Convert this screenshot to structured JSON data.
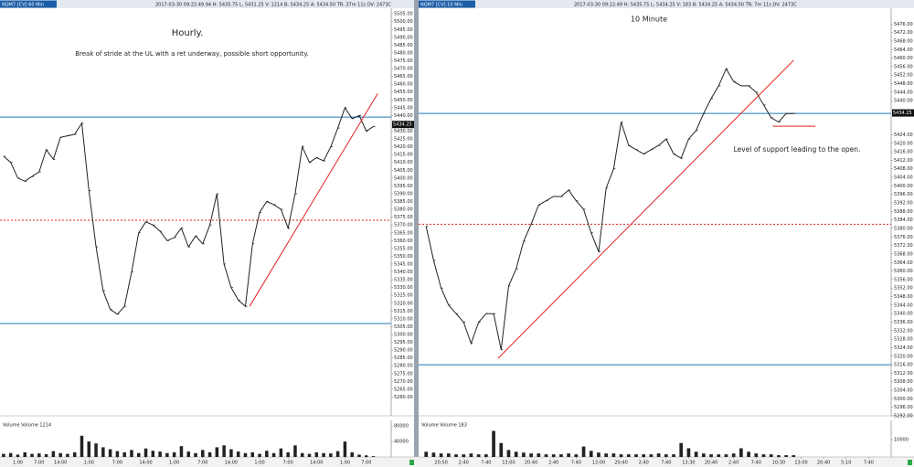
{
  "chart_data": [
    {
      "type": "line",
      "header": "NQM7 [CV] 60 Min",
      "status": "2017-03-30 09:22:49.94 H: 5435.75 L: 5431.25 V: 1214 B: 5434.25 A: 5434.50 TR: 37m 11s DV: 2473C",
      "annotations": [
        "Hourly.",
        "Break of stride at the UL with a ret underway, possible short opportunity."
      ],
      "values": [
        5414,
        5410,
        5400,
        5398,
        5401,
        5404,
        5418,
        5412,
        5426,
        5427,
        5428,
        5435,
        5392,
        5356,
        5328,
        5316,
        5313,
        5318,
        5340,
        5365,
        5372,
        5370,
        5366,
        5360,
        5362,
        5368,
        5356,
        5363,
        5358,
        5370,
        5390,
        5345,
        5330,
        5322,
        5318,
        5358,
        5378,
        5385,
        5383,
        5380,
        5368,
        5390,
        5420,
        5410,
        5413,
        5411,
        5420,
        5432,
        5445,
        5438,
        5440,
        5430,
        5433
      ],
      "color": "#222222",
      "xlim": [
        -0.5,
        54.5
      ],
      "ylim": [
        5248,
        5508
      ],
      "last": {
        "value": 5434.25,
        "label": "5434.25"
      },
      "hlines": [
        {
          "value": 5439,
          "color": "#1e7bb8",
          "style": "solid"
        },
        {
          "value": 5307,
          "color": "#1e7bb8",
          "style": "solid"
        },
        {
          "value": 5373,
          "color": "#e02020",
          "style": "dashed"
        }
      ],
      "trendlines": [
        {
          "x": [
            34.6,
            52.6
          ],
          "y": [
            5318,
            5454
          ],
          "color": "#e02020"
        }
      ],
      "yticks": [
        {
          "value": 5260,
          "label": "5260.00"
        },
        {
          "value": 5265,
          "label": "5265.00"
        },
        {
          "value": 5270,
          "label": "5270.00"
        },
        {
          "value": 5275,
          "label": "5275.00"
        },
        {
          "value": 5280,
          "label": "5280.00"
        },
        {
          "value": 5285,
          "label": "5285.00"
        },
        {
          "value": 5290,
          "label": "5290.00"
        },
        {
          "value": 5295,
          "label": "5295.00"
        },
        {
          "value": 5300,
          "label": "5300.00"
        },
        {
          "value": 5305,
          "label": "5305.00"
        },
        {
          "value": 5310,
          "label": "5310.00"
        },
        {
          "value": 5315,
          "label": "5315.00"
        },
        {
          "value": 5320,
          "label": "5320.00"
        },
        {
          "value": 5325,
          "label": "5325.00"
        },
        {
          "value": 5330,
          "label": "5330.00"
        },
        {
          "value": 5335,
          "label": "5335.00"
        },
        {
          "value": 5340,
          "label": "5340.00"
        },
        {
          "value": 5345,
          "label": "5345.00"
        },
        {
          "value": 5350,
          "label": "5350.00"
        },
        {
          "value": 5355,
          "label": "5355.00"
        },
        {
          "value": 5360,
          "label": "5360.00"
        },
        {
          "value": 5365,
          "label": "5365.00"
        },
        {
          "value": 5370,
          "label": "5370.00"
        },
        {
          "value": 5375,
          "label": "5375.00"
        },
        {
          "value": 5380,
          "label": "5380.00"
        },
        {
          "value": 5385,
          "label": "5385.00"
        },
        {
          "value": 5390,
          "label": "5390.00"
        },
        {
          "value": 5395,
          "label": "5395.00"
        },
        {
          "value": 5400,
          "label": "5400.00"
        },
        {
          "value": 5405,
          "label": "5405.00"
        },
        {
          "value": 5410,
          "label": "5410.00"
        },
        {
          "value": 5415,
          "label": "5415.00"
        },
        {
          "value": 5420,
          "label": "5420.00"
        },
        {
          "value": 5425,
          "label": "5425.00"
        },
        {
          "value": 5430,
          "label": "5430.00"
        },
        {
          "value": 5440,
          "label": "5440.00"
        },
        {
          "value": 5445,
          "label": "5445.00"
        },
        {
          "value": 5450,
          "label": "5450.00"
        },
        {
          "value": 5455,
          "label": "5455.00"
        },
        {
          "value": 5460,
          "label": "5460.00"
        },
        {
          "value": 5465,
          "label": "5465.00"
        },
        {
          "value": 5470,
          "label": "5470.00"
        },
        {
          "value": 5475,
          "label": "5475.00"
        },
        {
          "value": 5480,
          "label": "5480.00"
        },
        {
          "value": 5485,
          "label": "5485.00"
        },
        {
          "value": 5490,
          "label": "5490.00"
        },
        {
          "value": 5495,
          "label": "5495.00"
        },
        {
          "value": 5500,
          "label": "5500.00"
        },
        {
          "value": 5505,
          "label": "5505.00"
        }
      ]
    },
    {
      "type": "bar",
      "title": "Volume  Volume  1214",
      "values": [
        8000,
        10000,
        6000,
        12000,
        8000,
        9000,
        7000,
        15000,
        10000,
        8000,
        12000,
        55000,
        40000,
        35000,
        25000,
        20000,
        15000,
        12000,
        18000,
        10000,
        22000,
        16000,
        14000,
        10000,
        12000,
        28000,
        14000,
        10000,
        18000,
        12000,
        25000,
        30000,
        20000,
        14000,
        10000,
        12000,
        8000,
        16000,
        10000,
        22000,
        12000,
        30000,
        10000,
        8000,
        12000,
        10000,
        9000,
        15000,
        40000,
        12000,
        6000,
        4000,
        2000
      ],
      "color": "#222222",
      "xlim": [
        -0.5,
        54.5
      ],
      "ylim": [
        0,
        90000
      ],
      "yticks": [
        40000,
        80000
      ],
      "xticks": [
        {
          "value": 2,
          "label": "1:00"
        },
        {
          "value": 5,
          "label": "7:00"
        },
        {
          "value": 8,
          "label": "14:00"
        },
        {
          "value": 12,
          "label": "1:00"
        },
        {
          "value": 16,
          "label": "7:00"
        },
        {
          "value": 20,
          "label": "14:00"
        },
        {
          "value": 24,
          "label": "1:00"
        },
        {
          "value": 28,
          "label": "7:00"
        },
        {
          "value": 32,
          "label": "14:00"
        },
        {
          "value": 36,
          "label": "1:00"
        },
        {
          "value": 40,
          "label": "7:00"
        },
        {
          "value": 44,
          "label": "14:00"
        },
        {
          "value": 48,
          "label": "1:00"
        },
        {
          "value": 51,
          "label": "7:00"
        }
      ]
    },
    {
      "type": "line",
      "header": "NQM7 [CV] 10 Min",
      "status": "2017-03-30 09:22:49 H: 5435.75 L: 5434.25 V: 183 B: 5434.25 A: 5434.50 TR: 7m 11s DV: 2473C",
      "annotations": [
        "10 Minute",
        "Level of support leading to the open."
      ],
      "values": [
        5381,
        5365,
        5352,
        5344,
        5340,
        5336,
        5326,
        5336,
        5340,
        5340,
        5323,
        5353,
        5361,
        5374,
        5382,
        5391,
        5393,
        5395,
        5395,
        5398,
        5393,
        5389,
        5378,
        5369,
        5399,
        5408,
        5430,
        5419,
        5417,
        5415,
        5417,
        5419,
        5422,
        5415,
        5413,
        5422,
        5426,
        5434,
        5441,
        5447,
        5455,
        5449,
        5447,
        5447,
        5444,
        5438,
        5432,
        5430,
        5434,
        5434
      ],
      "color": "#222222",
      "xlim": [
        -1,
        62
      ],
      "ylim": [
        5292,
        5483
      ],
      "last": {
        "value": 5434.25,
        "label": "5434.25"
      },
      "hlines": [
        {
          "value": 5434,
          "color": "#1e7bb8",
          "style": "solid"
        },
        {
          "value": 5316,
          "color": "#1e7bb8",
          "style": "solid"
        },
        {
          "value": 5382,
          "color": "#e02020",
          "style": "dashed"
        }
      ],
      "trendlines": [
        {
          "x": [
            9.6,
            49
          ],
          "y": [
            5319,
            5459
          ],
          "color": "#e02020"
        },
        {
          "x": [
            46.2,
            51.9
          ],
          "y": [
            5428,
            5428
          ],
          "color": "#e02020"
        }
      ],
      "yticks": [
        {
          "value": 5292,
          "label": "5292.00"
        },
        {
          "value": 5296,
          "label": "5296.00"
        },
        {
          "value": 5300,
          "label": "5300.00"
        },
        {
          "value": 5304,
          "label": "5304.00"
        },
        {
          "value": 5308,
          "label": "5308.00"
        },
        {
          "value": 5312,
          "label": "5312.00"
        },
        {
          "value": 5316,
          "label": "5316.00"
        },
        {
          "value": 5320,
          "label": "5320.00"
        },
        {
          "value": 5324,
          "label": "5324.00"
        },
        {
          "value": 5328,
          "label": "5328.00"
        },
        {
          "value": 5332,
          "label": "5332.00"
        },
        {
          "value": 5336,
          "label": "5336.00"
        },
        {
          "value": 5340,
          "label": "5340.00"
        },
        {
          "value": 5344,
          "label": "5344.00"
        },
        {
          "value": 5348,
          "label": "5348.00"
        },
        {
          "value": 5352,
          "label": "5352.00"
        },
        {
          "value": 5356,
          "label": "5356.00"
        },
        {
          "value": 5360,
          "label": "5360.00"
        },
        {
          "value": 5364,
          "label": "5364.00"
        },
        {
          "value": 5368,
          "label": "5368.00"
        },
        {
          "value": 5372,
          "label": "5372.00"
        },
        {
          "value": 5376,
          "label": "5376.00"
        },
        {
          "value": 5380,
          "label": "5380.00"
        },
        {
          "value": 5384,
          "label": "5384.00"
        },
        {
          "value": 5388,
          "label": "5388.00"
        },
        {
          "value": 5392,
          "label": "5392.00"
        },
        {
          "value": 5396,
          "label": "5396.00"
        },
        {
          "value": 5400,
          "label": "5400.00"
        },
        {
          "value": 5404,
          "label": "5404.00"
        },
        {
          "value": 5408,
          "label": "5408.00"
        },
        {
          "value": 5412,
          "label": "5412.00"
        },
        {
          "value": 5416,
          "label": "5416.00"
        },
        {
          "value": 5420,
          "label": "5420.00"
        },
        {
          "value": 5424,
          "label": "5424.00"
        },
        {
          "value": 5440,
          "label": "5440.00"
        },
        {
          "value": 5444,
          "label": "5444.00"
        },
        {
          "value": 5448,
          "label": "5448.00"
        },
        {
          "value": 5452,
          "label": "5452.00"
        },
        {
          "value": 5456,
          "label": "5456.00"
        },
        {
          "value": 5460,
          "label": "5460.00"
        },
        {
          "value": 5464,
          "label": "5464.00"
        },
        {
          "value": 5468,
          "label": "5468.00"
        },
        {
          "value": 5472,
          "label": "5472.00"
        },
        {
          "value": 5476,
          "label": "5476.00"
        }
      ]
    },
    {
      "type": "bar",
      "title": "Volume  Volume  183",
      "values": [
        3000,
        2500,
        2000,
        2000,
        1500,
        1500,
        2000,
        1500,
        1500,
        15000,
        8000,
        4000,
        3000,
        2500,
        2000,
        2000,
        1500,
        1500,
        1500,
        2000,
        1500,
        6000,
        3500,
        2500,
        2000,
        2000,
        1500,
        1500,
        1500,
        1500,
        1500,
        2000,
        1500,
        1500,
        8000,
        5000,
        3000,
        2000,
        1500,
        1500,
        1500,
        2000,
        5000,
        3000,
        2000,
        1500,
        1500,
        1000,
        1000,
        1000
      ],
      "color": "#222222",
      "xlim": [
        -1,
        62
      ],
      "ylim": [
        0,
        20000
      ],
      "yticks": [
        10000
      ],
      "xticks": [
        {
          "value": 2,
          "label": "20:50"
        },
        {
          "value": 5,
          "label": "2:40"
        },
        {
          "value": 8,
          "label": "7:40"
        },
        {
          "value": 11,
          "label": "13:00"
        },
        {
          "value": 14,
          "label": "20:40"
        },
        {
          "value": 17,
          "label": "2:40"
        },
        {
          "value": 20,
          "label": "7:40"
        },
        {
          "value": 23,
          "label": "13:00"
        },
        {
          "value": 26,
          "label": "20:40"
        },
        {
          "value": 29,
          "label": "2:40"
        },
        {
          "value": 32,
          "label": "7:40"
        },
        {
          "value": 35,
          "label": "13:30"
        },
        {
          "value": 38,
          "label": "20:40"
        },
        {
          "value": 41,
          "label": "2:40"
        },
        {
          "value": 44,
          "label": "7:40"
        },
        {
          "value": 47,
          "label": "10:30"
        },
        {
          "value": 50,
          "label": "13:00"
        },
        {
          "value": 53,
          "label": "20:40"
        },
        {
          "value": 56,
          "label": "5:10"
        },
        {
          "value": 59,
          "label": "7:40"
        }
      ]
    }
  ]
}
